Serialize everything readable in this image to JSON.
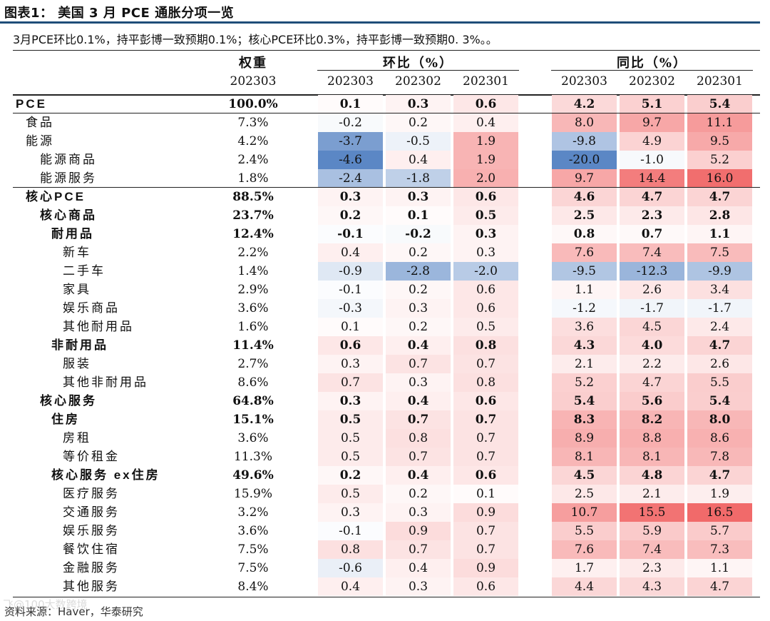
{
  "title": "图表1： 美国 3 月 PCE 通胀分项一览",
  "note": "3月PCE环比0.1%，持平彭博一致预期0.1%；核心PCE环比0.3%，持平彭博一致预期0. 3%。。",
  "headers": {
    "weight": "权重",
    "weight_sub": "202303",
    "mom": "环比（%）",
    "yoy": "同比（%）",
    "months": [
      "202303",
      "202302",
      "202301"
    ]
  },
  "rows": [
    {
      "label": "PCE",
      "indent": 0,
      "bold": true,
      "weight": "100.0%",
      "mom": [
        0.1,
        0.3,
        0.6
      ],
      "yoy": [
        4.2,
        5.1,
        5.4
      ]
    },
    {
      "label": "食品",
      "indent": 1,
      "bold": false,
      "weight": "7.3%",
      "mom": [
        -0.2,
        0.2,
        0.4
      ],
      "yoy": [
        8.0,
        9.7,
        11.1
      ]
    },
    {
      "label": "能源",
      "indent": 1,
      "bold": false,
      "weight": "4.2%",
      "mom": [
        -3.7,
        -0.5,
        1.9
      ],
      "yoy": [
        -9.8,
        4.9,
        9.5
      ]
    },
    {
      "label": "能源商品",
      "indent": 2,
      "bold": false,
      "weight": "2.4%",
      "mom": [
        -4.6,
        0.4,
        1.9
      ],
      "yoy": [
        -20.0,
        -1.0,
        5.2
      ]
    },
    {
      "label": "能源服务",
      "indent": 2,
      "bold": false,
      "weight": "1.8%",
      "mom": [
        -2.4,
        -1.8,
        2.0
      ],
      "yoy": [
        9.7,
        14.4,
        16.0
      ]
    },
    {
      "label": "核心PCE",
      "indent": 1,
      "bold": true,
      "weight": "88.5%",
      "mom": [
        0.3,
        0.3,
        0.6
      ],
      "yoy": [
        4.6,
        4.7,
        4.7
      ]
    },
    {
      "label": "核心商品",
      "indent": 2,
      "bold": true,
      "weight": "23.7%",
      "mom": [
        0.2,
        0.1,
        0.5
      ],
      "yoy": [
        2.5,
        2.3,
        2.8
      ]
    },
    {
      "label": "耐用品",
      "indent": 3,
      "bold": true,
      "weight": "12.4%",
      "mom": [
        -0.1,
        -0.2,
        0.3
      ],
      "yoy": [
        0.8,
        0.7,
        1.1
      ]
    },
    {
      "label": "新车",
      "indent": 4,
      "bold": false,
      "weight": "2.2%",
      "mom": [
        0.4,
        0.2,
        0.3
      ],
      "yoy": [
        7.6,
        7.4,
        7.5
      ]
    },
    {
      "label": "二手车",
      "indent": 4,
      "bold": false,
      "weight": "1.4%",
      "mom": [
        -0.9,
        -2.8,
        -2.0
      ],
      "yoy": [
        -9.5,
        -12.3,
        -9.9
      ]
    },
    {
      "label": "家具",
      "indent": 4,
      "bold": false,
      "weight": "2.9%",
      "mom": [
        -0.1,
        0.2,
        0.6
      ],
      "yoy": [
        1.1,
        2.6,
        3.4
      ]
    },
    {
      "label": "娱乐商品",
      "indent": 4,
      "bold": false,
      "weight": "3.6%",
      "mom": [
        -0.3,
        0.3,
        0.6
      ],
      "yoy": [
        -1.2,
        -1.7,
        -1.7
      ]
    },
    {
      "label": "其他耐用品",
      "indent": 4,
      "bold": false,
      "weight": "1.6%",
      "mom": [
        0.1,
        0.2,
        0.5
      ],
      "yoy": [
        3.6,
        4.5,
        2.4
      ]
    },
    {
      "label": "非耐用品",
      "indent": 3,
      "bold": true,
      "weight": "11.4%",
      "mom": [
        0.6,
        0.4,
        0.8
      ],
      "yoy": [
        4.3,
        4.0,
        4.7
      ]
    },
    {
      "label": "服装",
      "indent": 4,
      "bold": false,
      "weight": "2.7%",
      "mom": [
        0.3,
        0.7,
        0.7
      ],
      "yoy": [
        2.1,
        2.2,
        2.6
      ]
    },
    {
      "label": "其他非耐用品",
      "indent": 4,
      "bold": false,
      "weight": "8.6%",
      "mom": [
        0.7,
        0.3,
        0.8
      ],
      "yoy": [
        5.2,
        4.7,
        5.5
      ]
    },
    {
      "label": "核心服务",
      "indent": 2,
      "bold": true,
      "weight": "64.8%",
      "mom": [
        0.3,
        0.4,
        0.6
      ],
      "yoy": [
        5.4,
        5.6,
        5.4
      ]
    },
    {
      "label": "住房",
      "indent": 3,
      "bold": true,
      "weight": "15.1%",
      "mom": [
        0.5,
        0.7,
        0.7
      ],
      "yoy": [
        8.3,
        8.2,
        8.0
      ]
    },
    {
      "label": "房租",
      "indent": 4,
      "bold": false,
      "weight": "3.6%",
      "mom": [
        0.5,
        0.8,
        0.7
      ],
      "yoy": [
        8.9,
        8.8,
        8.6
      ]
    },
    {
      "label": "等价租金",
      "indent": 4,
      "bold": false,
      "weight": "11.3%",
      "mom": [
        0.5,
        0.7,
        0.7
      ],
      "yoy": [
        8.1,
        8.1,
        7.8
      ]
    },
    {
      "label": "核心服务 ex住房",
      "indent": 3,
      "bold": true,
      "weight": "49.6%",
      "mom": [
        0.2,
        0.4,
        0.6
      ],
      "yoy": [
        4.5,
        4.8,
        4.7
      ]
    },
    {
      "label": "医疗服务",
      "indent": 4,
      "bold": false,
      "weight": "15.9%",
      "mom": [
        0.5,
        0.2,
        0.1
      ],
      "yoy": [
        2.5,
        2.1,
        1.9
      ]
    },
    {
      "label": "交通服务",
      "indent": 4,
      "bold": false,
      "weight": "3.2%",
      "mom": [
        0.3,
        0.3,
        0.9
      ],
      "yoy": [
        10.7,
        15.5,
        16.5
      ]
    },
    {
      "label": "娱乐服务",
      "indent": 4,
      "bold": false,
      "weight": "3.6%",
      "mom": [
        -0.1,
        0.9,
        0.7
      ],
      "yoy": [
        5.5,
        5.9,
        5.7
      ]
    },
    {
      "label": "餐饮住宿",
      "indent": 4,
      "bold": false,
      "weight": "7.5%",
      "mom": [
        0.8,
        0.7,
        0.7
      ],
      "yoy": [
        7.6,
        7.4,
        7.3
      ]
    },
    {
      "label": "金融服务",
      "indent": 4,
      "bold": false,
      "weight": "7.5%",
      "mom": [
        -0.6,
        0.4,
        0.9
      ],
      "yoy": [
        1.7,
        2.3,
        1.1
      ]
    },
    {
      "label": "其他服务",
      "indent": 4,
      "bold": false,
      "weight": "8.4%",
      "mom": [
        0.4,
        0.3,
        0.6
      ],
      "yoy": [
        4.4,
        4.3,
        4.7
      ]
    }
  ],
  "source": "资料来源：Haver，华泰研究",
  "watermark": "飞@100大数跨境",
  "colors": {
    "neg": "#5b87c5",
    "pos": "#ee4a4a",
    "rule": "#1f4e79"
  }
}
